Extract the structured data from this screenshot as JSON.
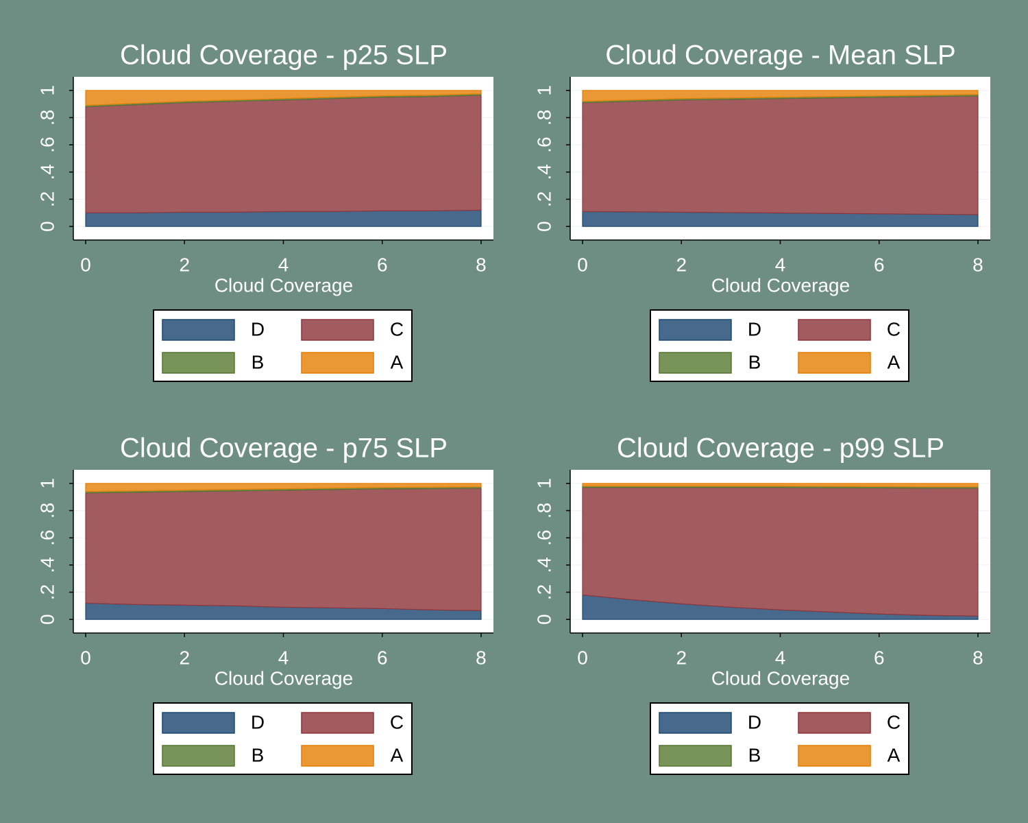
{
  "chart_data": [
    {
      "type": "area",
      "stacked": true,
      "title": "Cloud Coverage - p25 SLP",
      "xlabel": "Cloud Coverage",
      "x": [
        0,
        1,
        2,
        3,
        4,
        5,
        6,
        7,
        8
      ],
      "xlim": [
        -0.25,
        8.25
      ],
      "xticks": [
        0,
        2,
        4,
        6,
        8
      ],
      "ylim": [
        -0.1,
        1.1
      ],
      "yticks": [
        0,
        {
          "value": 0.2,
          "label": ".2"
        },
        {
          "value": 0.4,
          "label": ".4"
        },
        {
          "value": 0.6,
          "label": ".6"
        },
        {
          "value": 0.8,
          "label": ".8"
        },
        1
      ],
      "grid": true,
      "series": [
        {
          "name": "D",
          "color": "#476a8c",
          "values": [
            0.1,
            0.1,
            0.105,
            0.105,
            0.11,
            0.11,
            0.115,
            0.115,
            0.12
          ]
        },
        {
          "name": "C",
          "color": "#a25c60",
          "values": [
            0.78,
            0.795,
            0.805,
            0.815,
            0.82,
            0.83,
            0.835,
            0.84,
            0.845
          ]
        },
        {
          "name": "B",
          "color": "#789459",
          "values": [
            0.01,
            0.01,
            0.01,
            0.01,
            0.01,
            0.01,
            0.01,
            0.01,
            0.01
          ]
        },
        {
          "name": "A",
          "color": "#ea9836",
          "values": [
            0.11,
            0.095,
            0.08,
            0.07,
            0.06,
            0.05,
            0.04,
            0.035,
            0.025
          ]
        }
      ]
    },
    {
      "type": "area",
      "stacked": true,
      "title": "Cloud Coverage - Mean SLP",
      "xlabel": "Cloud Coverage",
      "x": [
        0,
        1,
        2,
        3,
        4,
        5,
        6,
        7,
        8
      ],
      "xlim": [
        -0.25,
        8.25
      ],
      "xticks": [
        0,
        2,
        4,
        6,
        8
      ],
      "ylim": [
        -0.1,
        1.1
      ],
      "yticks": [
        0,
        {
          "value": 0.2,
          "label": ".2"
        },
        {
          "value": 0.4,
          "label": ".4"
        },
        {
          "value": 0.6,
          "label": ".6"
        },
        {
          "value": 0.8,
          "label": ".8"
        },
        1
      ],
      "grid": true,
      "series": [
        {
          "name": "D",
          "color": "#476a8c",
          "values": [
            0.11,
            0.108,
            0.105,
            0.102,
            0.099,
            0.096,
            0.093,
            0.09,
            0.087
          ]
        },
        {
          "name": "C",
          "color": "#a25c60",
          "values": [
            0.8,
            0.812,
            0.825,
            0.833,
            0.841,
            0.849,
            0.857,
            0.865,
            0.873
          ]
        },
        {
          "name": "B",
          "color": "#789459",
          "values": [
            0.01,
            0.01,
            0.01,
            0.01,
            0.01,
            0.01,
            0.01,
            0.01,
            0.01
          ]
        },
        {
          "name": "A",
          "color": "#ea9836",
          "values": [
            0.08,
            0.07,
            0.06,
            0.055,
            0.05,
            0.045,
            0.04,
            0.035,
            0.03
          ]
        }
      ]
    },
    {
      "type": "area",
      "stacked": true,
      "title": "Cloud Coverage - p75 SLP",
      "xlabel": "Cloud Coverage",
      "x": [
        0,
        1,
        2,
        3,
        4,
        5,
        6,
        7,
        8
      ],
      "xlim": [
        -0.25,
        8.25
      ],
      "xticks": [
        0,
        2,
        4,
        6,
        8
      ],
      "ylim": [
        -0.1,
        1.1
      ],
      "yticks": [
        0,
        {
          "value": 0.2,
          "label": ".2"
        },
        {
          "value": 0.4,
          "label": ".4"
        },
        {
          "value": 0.6,
          "label": ".6"
        },
        {
          "value": 0.8,
          "label": ".8"
        },
        1
      ],
      "grid": true,
      "series": [
        {
          "name": "D",
          "color": "#476a8c",
          "values": [
            0.12,
            0.11,
            0.105,
            0.1,
            0.09,
            0.085,
            0.08,
            0.07,
            0.065
          ]
        },
        {
          "name": "C",
          "color": "#a25c60",
          "values": [
            0.81,
            0.825,
            0.835,
            0.845,
            0.86,
            0.87,
            0.88,
            0.892,
            0.9
          ]
        },
        {
          "name": "B",
          "color": "#789459",
          "values": [
            0.01,
            0.01,
            0.01,
            0.01,
            0.01,
            0.01,
            0.01,
            0.01,
            0.01
          ]
        },
        {
          "name": "A",
          "color": "#ea9836",
          "values": [
            0.06,
            0.055,
            0.05,
            0.045,
            0.04,
            0.035,
            0.03,
            0.028,
            0.025
          ]
        }
      ]
    },
    {
      "type": "area",
      "stacked": true,
      "title": "Cloud Coverage - p99 SLP",
      "xlabel": "Cloud Coverage",
      "x": [
        0,
        1,
        2,
        3,
        4,
        5,
        6,
        7,
        8
      ],
      "xlim": [
        -0.25,
        8.25
      ],
      "xticks": [
        0,
        2,
        4,
        6,
        8
      ],
      "ylim": [
        -0.1,
        1.1
      ],
      "yticks": [
        0,
        {
          "value": 0.2,
          "label": ".2"
        },
        {
          "value": 0.4,
          "label": ".4"
        },
        {
          "value": 0.6,
          "label": ".6"
        },
        {
          "value": 0.8,
          "label": ".8"
        },
        1
      ],
      "grid": true,
      "series": [
        {
          "name": "D",
          "color": "#476a8c",
          "values": [
            0.18,
            0.145,
            0.115,
            0.09,
            0.07,
            0.055,
            0.04,
            0.03,
            0.025
          ]
        },
        {
          "name": "C",
          "color": "#a25c60",
          "values": [
            0.79,
            0.825,
            0.855,
            0.88,
            0.9,
            0.913,
            0.927,
            0.935,
            0.94
          ]
        },
        {
          "name": "B",
          "color": "#789459",
          "values": [
            0.01,
            0.01,
            0.01,
            0.01,
            0.01,
            0.01,
            0.01,
            0.01,
            0.01
          ]
        },
        {
          "name": "A",
          "color": "#ea9836",
          "values": [
            0.02,
            0.02,
            0.02,
            0.02,
            0.02,
            0.022,
            0.023,
            0.025,
            0.025
          ]
        }
      ]
    }
  ]
}
